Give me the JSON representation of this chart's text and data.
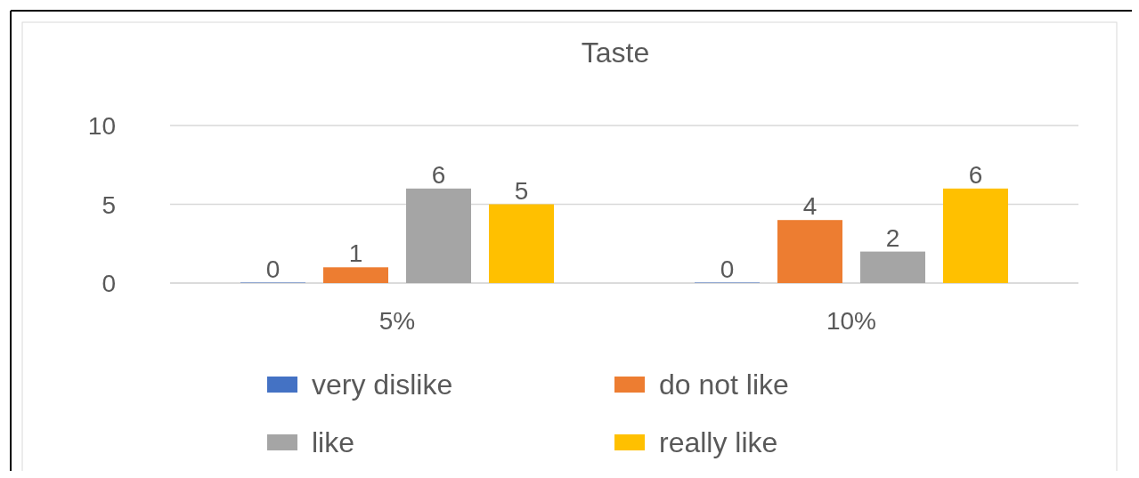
{
  "chart_data": {
    "type": "bar",
    "title": "Taste",
    "categories": [
      "5%",
      "10%"
    ],
    "series": [
      {
        "name": "very dislike",
        "color": "#4472c4",
        "values": [
          0,
          0
        ]
      },
      {
        "name": "do not like",
        "color": "#ed7d31",
        "values": [
          1,
          4
        ]
      },
      {
        "name": "like",
        "color": "#a5a5a5",
        "values": [
          6,
          2
        ]
      },
      {
        "name": "really like",
        "color": "#ffc000",
        "values": [
          5,
          6
        ]
      }
    ],
    "ylim": [
      0,
      10
    ],
    "yticks": [
      0,
      5,
      10
    ],
    "grid": "y",
    "legend": "bottom",
    "data_labels": true
  }
}
